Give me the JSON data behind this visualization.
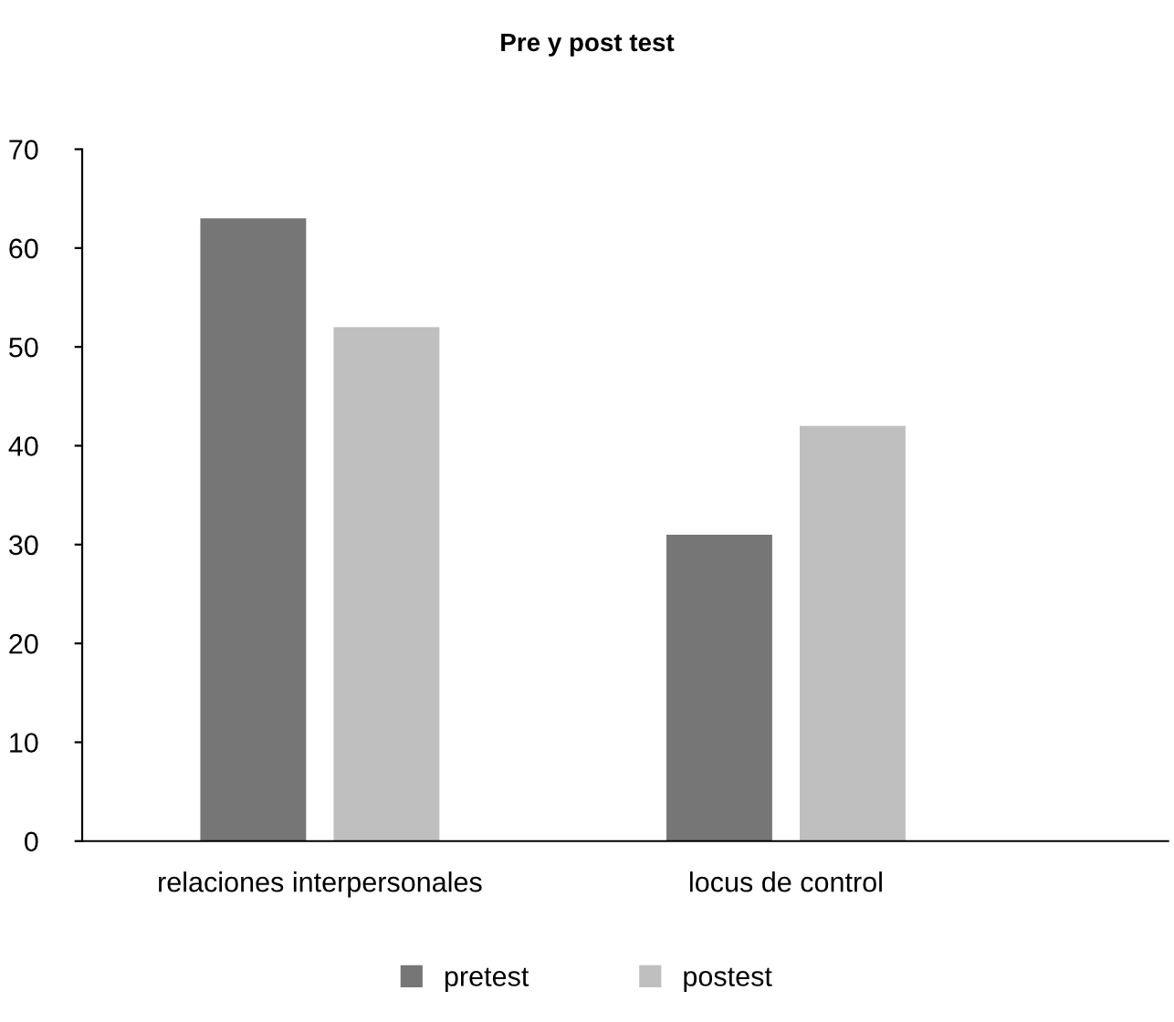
{
  "chart_data": {
    "type": "bar",
    "title": "Pre y post test",
    "categories": [
      "relaciones interpersonales",
      "locus de control"
    ],
    "series": [
      {
        "name": "pretest",
        "color": "#767676",
        "values": [
          63,
          31
        ]
      },
      {
        "name": "postest",
        "color": "#bfbfbf",
        "values": [
          52,
          42
        ]
      }
    ],
    "ylim": [
      0,
      70
    ],
    "yticks": [
      0,
      10,
      20,
      30,
      40,
      50,
      60,
      70
    ],
    "grid": false,
    "legend": "bottom"
  }
}
